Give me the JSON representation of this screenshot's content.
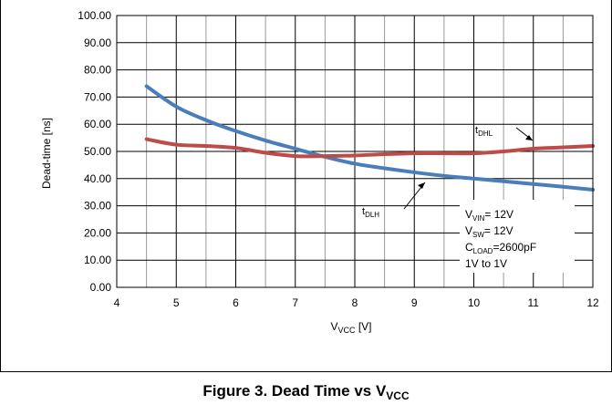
{
  "chart_data": {
    "type": "line",
    "xlabel": {
      "main": "V",
      "sub": "VCC",
      "rest": " [V]"
    },
    "ylabel": "Dead-time [ns]",
    "xlim": [
      4,
      12
    ],
    "ylim": [
      0,
      100
    ],
    "x_ticks": [
      "4",
      "5",
      "6",
      "7",
      "8",
      "9",
      "10",
      "11",
      "12"
    ],
    "y_ticks": [
      "0.00",
      "10.00",
      "20.00",
      "30.00",
      "40.00",
      "50.00",
      "60.00",
      "70.00",
      "80.00",
      "90.00",
      "100.00"
    ],
    "grid": {
      "x_step": 0.5,
      "y_step": 10
    },
    "series": [
      {
        "name_main": "t",
        "name_sub": "DLH",
        "color": "#4a7ebb",
        "x": [
          4.5,
          5,
          5.5,
          6,
          6.5,
          7,
          7.5,
          8,
          8.5,
          9,
          9.5,
          10,
          10.5,
          11,
          11.5,
          12
        ],
        "y": [
          74.0,
          66.5,
          61.5,
          57.5,
          54.0,
          51.0,
          48.0,
          45.5,
          43.8,
          42.3,
          41.0,
          40.0,
          39.0,
          38.0,
          37.0,
          35.9
        ]
      },
      {
        "name_main": "t",
        "name_sub": "DHL",
        "color": "#be4b48",
        "x": [
          4.5,
          5,
          5.5,
          6,
          6.5,
          7,
          7.5,
          8,
          8.5,
          9,
          9.5,
          10,
          10.5,
          11,
          11.5,
          12
        ],
        "y": [
          54.5,
          52.5,
          52.0,
          51.3,
          49.5,
          48.3,
          48.3,
          48.5,
          49.0,
          49.3,
          49.3,
          49.3,
          50.0,
          51.0,
          51.5,
          52.0
        ]
      }
    ],
    "legend_box": [
      {
        "main": "V",
        "sub": "VIN",
        "rest": "= 12V"
      },
      {
        "main": "V",
        "sub": "SW",
        "rest": "= 12V"
      },
      {
        "main": "C",
        "sub": "LOAD",
        "rest": "=2600pF"
      },
      {
        "main": "1V to 1V",
        "sub": "",
        "rest": ""
      }
    ]
  },
  "caption": {
    "main": "Figure 3. Dead Time vs V",
    "sub": "VCC"
  }
}
